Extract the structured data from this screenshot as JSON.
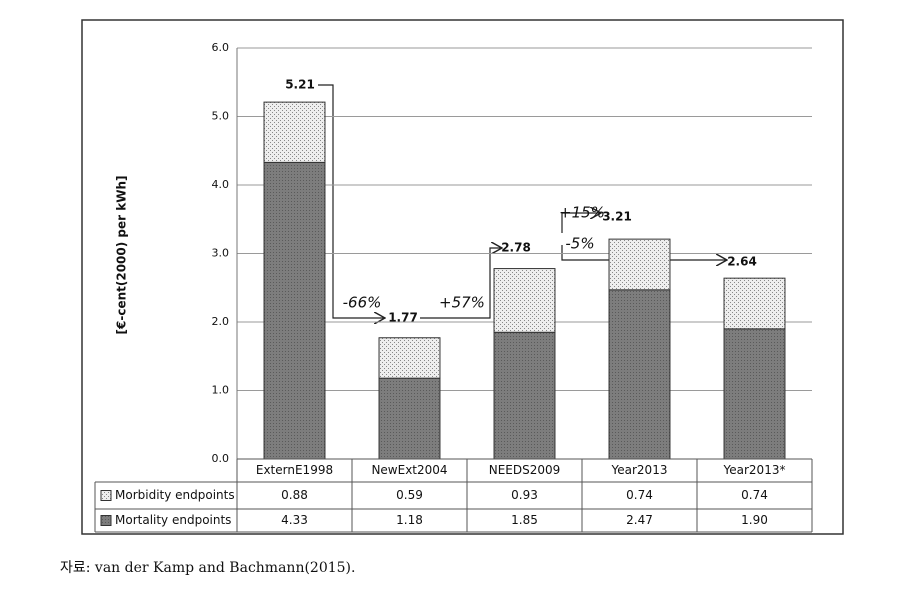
{
  "chart_data": {
    "type": "stacked_bar",
    "ylabel": "[€-cent(2000) per kWh]",
    "categories": [
      "ExternE1998",
      "NewExt2004",
      "NEEDS2009",
      "Year2013",
      "Year2013*"
    ],
    "series": [
      {
        "name": "Morbidity endpoints",
        "color": "#e4e4e4",
        "values": [
          0.88,
          0.59,
          0.93,
          0.74,
          0.74
        ]
      },
      {
        "name": "Mortality endpoints",
        "color": "#7a7a7a",
        "values": [
          4.33,
          1.18,
          1.85,
          2.47,
          1.9
        ],
        "value_labels": [
          "4.33",
          "1.18",
          "1.85",
          "2.47",
          "1.90"
        ]
      }
    ],
    "totals": [
      5.21,
      1.77,
      2.78,
      3.21,
      2.64
    ],
    "annotations": [
      "-66%",
      "+57%",
      "+15%",
      "-5%"
    ],
    "ylim": [
      0,
      6
    ],
    "yticks": [
      {
        "value": 0,
        "label": "0.0"
      },
      {
        "value": 1,
        "label": "1.0"
      },
      {
        "value": 2,
        "label": "2.0"
      },
      {
        "value": 3,
        "label": "3.0"
      },
      {
        "value": 4,
        "label": "4.0"
      },
      {
        "value": 5,
        "label": "5.0"
      },
      {
        "value": 6,
        "label": "6.0"
      }
    ],
    "grid": true
  },
  "caption": "자료: van der Kamp and Bachmann(2015)."
}
